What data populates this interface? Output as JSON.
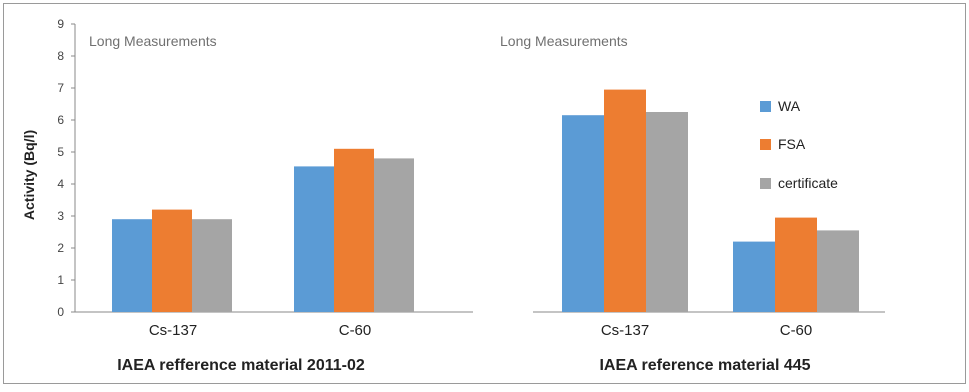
{
  "chart_data": [
    {
      "type": "bar",
      "subtitle": "Long Measurements",
      "xlabel": "IAEA refference material 2011-02",
      "ylabel": "Activity (Bq/l)",
      "categories": [
        "Cs-137",
        "C-60"
      ],
      "ylim": [
        0,
        9
      ],
      "yticks": [
        "0",
        "1",
        "2",
        "3",
        "4",
        "5",
        "6",
        "7",
        "8",
        "9"
      ],
      "grid": false,
      "series": [
        {
          "name": "WA",
          "color": "#5b9bd5",
          "values": [
            2.9,
            4.55
          ]
        },
        {
          "name": "FSA",
          "color": "#ed7d31",
          "values": [
            3.2,
            5.1
          ]
        },
        {
          "name": "certificate",
          "color": "#a5a5a5",
          "values": [
            2.9,
            4.8
          ]
        }
      ]
    },
    {
      "type": "bar",
      "subtitle": "Long Measurements",
      "xlabel": "IAEA reference material 445",
      "categories": [
        "Cs-137",
        "C-60"
      ],
      "ylim": [
        0,
        9
      ],
      "grid": false,
      "legend_position": "right",
      "series": [
        {
          "name": "WA",
          "color": "#5b9bd5",
          "values": [
            6.15,
            2.2
          ]
        },
        {
          "name": "FSA",
          "color": "#ed7d31",
          "values": [
            6.95,
            2.95
          ]
        },
        {
          "name": "certificate",
          "color": "#a5a5a5",
          "values": [
            6.25,
            2.55
          ]
        }
      ]
    }
  ]
}
